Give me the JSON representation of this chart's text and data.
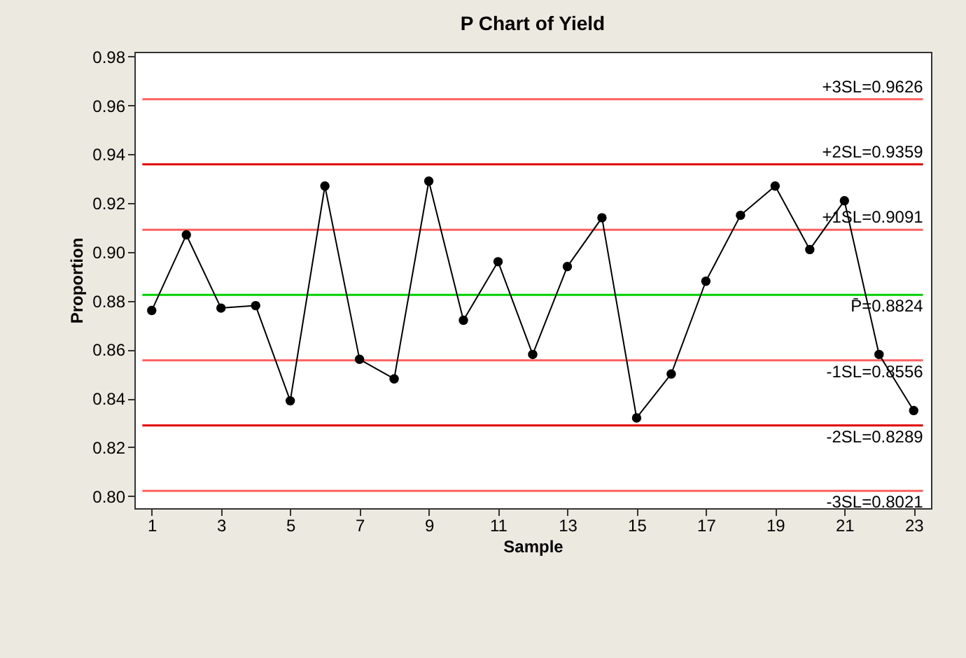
{
  "chart_data": {
    "type": "line",
    "title": "P Chart of Yield",
    "xlabel": "Sample",
    "ylabel": "Proportion",
    "x": [
      1,
      2,
      3,
      4,
      5,
      6,
      7,
      8,
      9,
      10,
      11,
      12,
      13,
      14,
      15,
      16,
      17,
      18,
      19,
      20,
      21,
      22,
      23
    ],
    "series": [
      {
        "color": "#000000",
        "values": [
          0.876,
          0.907,
          0.877,
          0.878,
          0.839,
          0.927,
          0.856,
          0.848,
          0.929,
          0.872,
          0.896,
          0.858,
          0.894,
          0.914,
          0.832,
          0.85,
          0.888,
          0.915,
          0.927,
          0.901,
          0.921,
          0.858,
          0.835
        ]
      }
    ],
    "xlim": [
      0.5,
      23.5
    ],
    "xticks": [
      1,
      3,
      5,
      7,
      9,
      11,
      13,
      15,
      17,
      19,
      21,
      23
    ],
    "ylim": [
      0.795,
      0.982
    ],
    "yticks": [
      {
        "value": 0.8,
        "label": "0.80"
      },
      {
        "value": 0.82,
        "label": "0.82"
      },
      {
        "value": 0.84,
        "label": "0.84"
      },
      {
        "value": 0.86,
        "label": "0.86"
      },
      {
        "value": 0.88,
        "label": "0.88"
      },
      {
        "value": 0.9,
        "label": "0.90"
      },
      {
        "value": 0.92,
        "label": "0.92"
      },
      {
        "value": 0.94,
        "label": "0.94"
      },
      {
        "value": 0.96,
        "label": "0.96"
      },
      {
        "value": 0.98,
        "label": "0.98"
      }
    ],
    "ref_lines": [
      {
        "axis": "y",
        "value": 0.9626,
        "label": "+3SL=0.9626",
        "color": "#ff6060"
      },
      {
        "axis": "y",
        "value": 0.9359,
        "label": "+2SL=0.9359",
        "color": "#e00000"
      },
      {
        "axis": "y",
        "value": 0.9091,
        "label": "+1SL=0.9091",
        "color": "#ff6060"
      },
      {
        "axis": "y",
        "value": 0.8824,
        "label": "P̄=0.8824",
        "color": "#00d000"
      },
      {
        "axis": "y",
        "value": 0.8556,
        "label": "-1SL=0.8556",
        "color": "#ff6060"
      },
      {
        "axis": "y",
        "value": 0.8289,
        "label": "-2SL=0.8289",
        "color": "#e00000"
      },
      {
        "axis": "y",
        "value": 0.8021,
        "label": "-3SL=0.8021",
        "color": "#ff6060"
      }
    ],
    "grid": false,
    "marker": "circle",
    "line_style": "solid"
  }
}
